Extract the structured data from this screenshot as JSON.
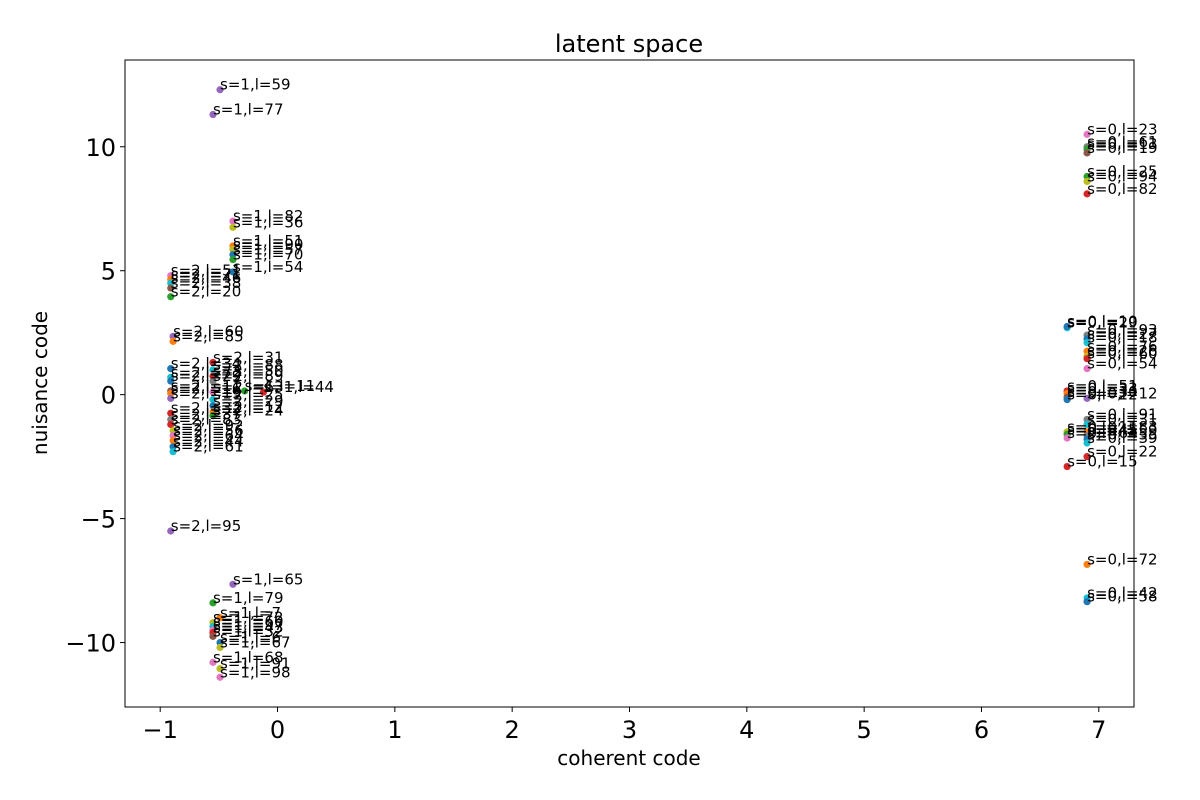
{
  "chart_data": {
    "type": "scatter",
    "title": "latent space",
    "xlabel": "coherent code",
    "ylabel": "nuisance code",
    "xlim": [
      -1.3,
      7.3
    ],
    "ylim": [
      -12.6,
      13.5
    ],
    "xticks": [
      -1,
      0,
      1,
      2,
      3,
      4,
      5,
      6,
      7
    ],
    "xtick_labels": [
      "−1",
      "0",
      "1",
      "2",
      "3",
      "4",
      "5",
      "6",
      "7"
    ],
    "yticks": [
      -10,
      -5,
      0,
      5,
      10
    ],
    "ytick_labels": [
      "−10",
      "−5",
      "0",
      "5",
      "10"
    ],
    "grid": false,
    "palette": [
      "#1f77b4",
      "#ff7f0e",
      "#2ca02c",
      "#d62728",
      "#9467bd",
      "#8c564b",
      "#e377c2",
      "#7f7f7f",
      "#bcbd22",
      "#17becf"
    ],
    "points": [
      {
        "x": -0.49,
        "y": 12.3,
        "label": "s=1,l=59",
        "c": 4
      },
      {
        "x": -0.55,
        "y": 11.3,
        "label": "s=1,l=77",
        "c": 4
      },
      {
        "x": -0.38,
        "y": 7.0,
        "label": "s=1,l=82",
        "c": 6
      },
      {
        "x": -0.38,
        "y": 6.75,
        "label": "s=1,l=36",
        "c": 8
      },
      {
        "x": -0.38,
        "y": 6.0,
        "label": "s=1,l=51",
        "c": 1
      },
      {
        "x": -0.38,
        "y": 5.85,
        "label": "s=1,l=90",
        "c": 8
      },
      {
        "x": -0.38,
        "y": 5.65,
        "label": "s=1,l=57",
        "c": 0
      },
      {
        "x": -0.38,
        "y": 5.45,
        "label": "s=1,l=70",
        "c": 2
      },
      {
        "x": -0.38,
        "y": 4.95,
        "label": "s=1,l=54",
        "c": 0
      },
      {
        "x": -0.91,
        "y": 4.8,
        "label": "s=2,l=51",
        "c": 6
      },
      {
        "x": -0.91,
        "y": 4.65,
        "label": "s=2,l=71",
        "c": 1
      },
      {
        "x": -0.91,
        "y": 4.5,
        "label": "s=2,l=46",
        "c": 9
      },
      {
        "x": -0.91,
        "y": 4.3,
        "label": "s=2,l=38",
        "c": 5
      },
      {
        "x": -0.91,
        "y": 3.95,
        "label": "s=2,l=20",
        "c": 2
      },
      {
        "x": -0.89,
        "y": 2.35,
        "label": "s=2,l=60",
        "c": 4
      },
      {
        "x": -0.89,
        "y": 2.15,
        "label": "s=2,l=85",
        "c": 1
      },
      {
        "x": -0.55,
        "y": 1.3,
        "label": "s=2,l=31",
        "c": 3
      },
      {
        "x": -0.91,
        "y": 1.05,
        "label": "s=2,l=34",
        "c": 0
      },
      {
        "x": -0.55,
        "y": 1.0,
        "label": "s=2,l=88",
        "c": 9
      },
      {
        "x": -0.55,
        "y": 0.75,
        "label": "s=2,l=50",
        "c": 3
      },
      {
        "x": -0.91,
        "y": 0.7,
        "label": "s=2,l=73",
        "c": 9
      },
      {
        "x": -0.91,
        "y": 0.55,
        "label": "s=2,l=29",
        "c": 0
      },
      {
        "x": -0.55,
        "y": 0.55,
        "label": "s=2,l=89",
        "c": 7
      },
      {
        "x": -0.91,
        "y": 0.15,
        "label": "s=2,l=11",
        "c": 5
      },
      {
        "x": -0.91,
        "y": 0.05,
        "label": "s=2,l=16",
        "c": 1
      },
      {
        "x": -0.55,
        "y": 0.1,
        "label": "s=2,l=63",
        "c": 6
      },
      {
        "x": -0.28,
        "y": 0.15,
        "label": "s=1,l=11",
        "c": 2
      },
      {
        "x": -0.12,
        "y": 0.1,
        "label": "s=1,l=44",
        "c": 3
      },
      {
        "x": -0.91,
        "y": -0.15,
        "label": "s=2,l=19",
        "c": 4
      },
      {
        "x": -0.55,
        "y": -0.2,
        "label": "s=2,l=25",
        "c": 9
      },
      {
        "x": -0.91,
        "y": -0.75,
        "label": "s=2,l=32",
        "c": 3
      },
      {
        "x": -0.55,
        "y": -0.45,
        "label": "s=2,l=29",
        "c": 0
      },
      {
        "x": -0.55,
        "y": -0.7,
        "label": "s=2,l=12",
        "c": 1
      },
      {
        "x": -0.55,
        "y": -0.85,
        "label": "s=2,l=24",
        "c": 2
      },
      {
        "x": -0.91,
        "y": -1.0,
        "label": "s=2,l=37",
        "c": 7
      },
      {
        "x": -0.91,
        "y": -1.2,
        "label": "s=2,l=83",
        "c": 3
      },
      {
        "x": -0.89,
        "y": -1.45,
        "label": "s=2,l=92",
        "c": 8
      },
      {
        "x": -0.89,
        "y": -1.65,
        "label": "s=2,l=56",
        "c": 6
      },
      {
        "x": -0.89,
        "y": -1.85,
        "label": "s=2,l=64",
        "c": 1
      },
      {
        "x": -0.89,
        "y": -2.1,
        "label": "s=2,l=44",
        "c": 0
      },
      {
        "x": -0.89,
        "y": -2.3,
        "label": "s=2,l=61",
        "c": 9
      },
      {
        "x": -0.91,
        "y": -5.5,
        "label": "s=2,l=95",
        "c": 4
      },
      {
        "x": -0.38,
        "y": -7.65,
        "label": "s=1,l=65",
        "c": 4
      },
      {
        "x": -0.55,
        "y": -8.4,
        "label": "s=1,l=79",
        "c": 2
      },
      {
        "x": -0.49,
        "y": -9.0,
        "label": "s=1,l=7",
        "c": 1
      },
      {
        "x": -0.55,
        "y": -9.2,
        "label": "s=1,l=72",
        "c": 8
      },
      {
        "x": -0.55,
        "y": -9.35,
        "label": "s=1,l=60",
        "c": 9
      },
      {
        "x": -0.55,
        "y": -9.5,
        "label": "s=1,l=97",
        "c": 6
      },
      {
        "x": -0.55,
        "y": -9.6,
        "label": "s=1,l=43",
        "c": 3
      },
      {
        "x": -0.55,
        "y": -9.75,
        "label": "s=1,l=32",
        "c": 5
      },
      {
        "x": -0.49,
        "y": -10.0,
        "label": "s=1,l=6",
        "c": 0
      },
      {
        "x": -0.49,
        "y": -10.2,
        "label": "s=1,l=67",
        "c": 8
      },
      {
        "x": -0.55,
        "y": -10.8,
        "label": "s=1,l=68",
        "c": 6
      },
      {
        "x": -0.49,
        "y": -11.05,
        "label": "s=1,l=91",
        "c": 8
      },
      {
        "x": -0.49,
        "y": -11.4,
        "label": "s=1,l=98",
        "c": 6
      },
      {
        "x": 6.9,
        "y": 10.5,
        "label": "s=0,l=23",
        "c": 6
      },
      {
        "x": 6.9,
        "y": 10.0,
        "label": "s=0,l=61",
        "c": 7
      },
      {
        "x": 6.9,
        "y": 9.9,
        "label": "s=0,l=13",
        "c": 2
      },
      {
        "x": 6.9,
        "y": 9.75,
        "label": "s=0,l=19",
        "c": 5
      },
      {
        "x": 6.9,
        "y": 8.8,
        "label": "s=0,l=25",
        "c": 2
      },
      {
        "x": 6.9,
        "y": 8.6,
        "label": "s=0,l=94",
        "c": 8
      },
      {
        "x": 6.9,
        "y": 8.1,
        "label": "s=0,l=82",
        "c": 3
      },
      {
        "x": 6.73,
        "y": 2.7,
        "label": "s=0,l=29",
        "c": 9
      },
      {
        "x": 6.73,
        "y": 2.75,
        "label": "s=0,l=10",
        "c": 0
      },
      {
        "x": 6.9,
        "y": 2.4,
        "label": "s=0,l=93",
        "c": 7
      },
      {
        "x": 6.9,
        "y": 2.25,
        "label": "s=0,l=27",
        "c": 0
      },
      {
        "x": 6.9,
        "y": 2.1,
        "label": "s=0,l=18",
        "c": 9
      },
      {
        "x": 6.9,
        "y": 1.75,
        "label": "s=0,l=76",
        "c": 1
      },
      {
        "x": 6.9,
        "y": 1.55,
        "label": "s=0,l=26",
        "c": 8
      },
      {
        "x": 6.9,
        "y": 1.45,
        "label": "s=0,l=60",
        "c": 3
      },
      {
        "x": 6.9,
        "y": 1.05,
        "label": "s=0,l=54",
        "c": 6
      },
      {
        "x": 6.73,
        "y": 0.15,
        "label": "s=0,l=51",
        "c": 3
      },
      {
        "x": 6.73,
        "y": 0.05,
        "label": "s=0,l=33",
        "c": 1
      },
      {
        "x": 6.73,
        "y": -0.1,
        "label": "s=0,l=30",
        "c": 5
      },
      {
        "x": 6.73,
        "y": -0.2,
        "label": "s=0,l=22",
        "c": 0
      },
      {
        "x": 6.9,
        "y": -0.15,
        "label": "s=0,l=12",
        "c": 4
      },
      {
        "x": 6.9,
        "y": -1.0,
        "label": "s=0,l=91",
        "c": 7
      },
      {
        "x": 6.9,
        "y": -1.2,
        "label": "s=0,l=31",
        "c": 9
      },
      {
        "x": 6.73,
        "y": -1.5,
        "label": "s=0,l=11",
        "c": 8
      },
      {
        "x": 6.73,
        "y": -1.6,
        "label": "s=0,l=45",
        "c": 2
      },
      {
        "x": 6.73,
        "y": -1.75,
        "label": "s=0,l=64",
        "c": 6
      },
      {
        "x": 6.9,
        "y": -1.5,
        "label": "s=0,l=83",
        "c": 1
      },
      {
        "x": 6.9,
        "y": -1.65,
        "label": "s=0,l=59",
        "c": 7
      },
      {
        "x": 6.9,
        "y": -1.8,
        "label": "s=0,l=55",
        "c": 0
      },
      {
        "x": 6.9,
        "y": -1.95,
        "label": "s=0,l=39",
        "c": 9
      },
      {
        "x": 6.9,
        "y": -2.5,
        "label": "s=0,l=22",
        "c": 3
      },
      {
        "x": 6.73,
        "y": -2.9,
        "label": "s=0,l=15",
        "c": 3
      },
      {
        "x": 6.9,
        "y": -6.85,
        "label": "s=0,l=72",
        "c": 1
      },
      {
        "x": 6.9,
        "y": -8.2,
        "label": "s=0,l=42",
        "c": 9
      },
      {
        "x": 6.9,
        "y": -8.35,
        "label": "s=0,l=58",
        "c": 0
      }
    ]
  }
}
